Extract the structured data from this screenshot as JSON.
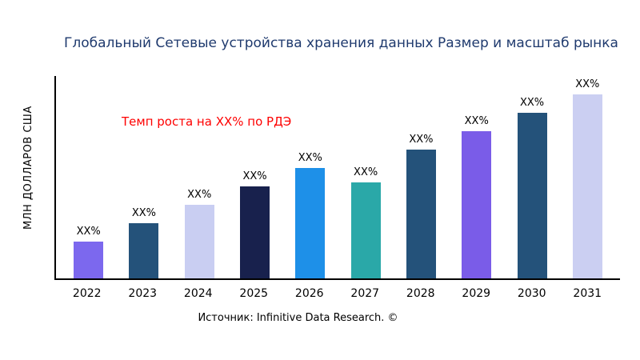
{
  "title": "Глобальный Сетевые устройства хранения данных Размер и масштаб рынка",
  "y_axis_label": "МЛН ДОЛЛАРОВ США",
  "annotation": "Темп роста на XX% по РДЭ",
  "source": "Источник: Infinitive Data Research. ©",
  "chart_data": {
    "type": "bar",
    "title": "Глобальный Сетевые устройства хранения данных Размер и масштаб рынка",
    "xlabel": "",
    "ylabel": "МЛН ДОЛЛАРОВ США",
    "categories": [
      "2022",
      "2023",
      "2024",
      "2025",
      "2026",
      "2027",
      "2028",
      "2029",
      "2030",
      "2031"
    ],
    "values": [
      20,
      30,
      40,
      50,
      60,
      52,
      70,
      80,
      90,
      100
    ],
    "bar_value_labels": [
      "XX%",
      "XX%",
      "XX%",
      "XX%",
      "XX%",
      "XX%",
      "XX%",
      "XX%",
      "XX%",
      "XX%"
    ],
    "bar_colors": [
      "#7c68ee",
      "#24527a",
      "#c9cef2",
      "#18214d",
      "#1e90e8",
      "#2aa8a8",
      "#24527a",
      "#7a5ce8",
      "#24527a",
      "#cbcff2"
    ],
    "ylim": [
      0,
      100
    ],
    "grid": false,
    "legend": "none",
    "annotation": "Темп роста на XX% по РДЭ",
    "note": "values are relative bar heights (percent of tallest bar); actual figures masked as XX% in source image"
  }
}
